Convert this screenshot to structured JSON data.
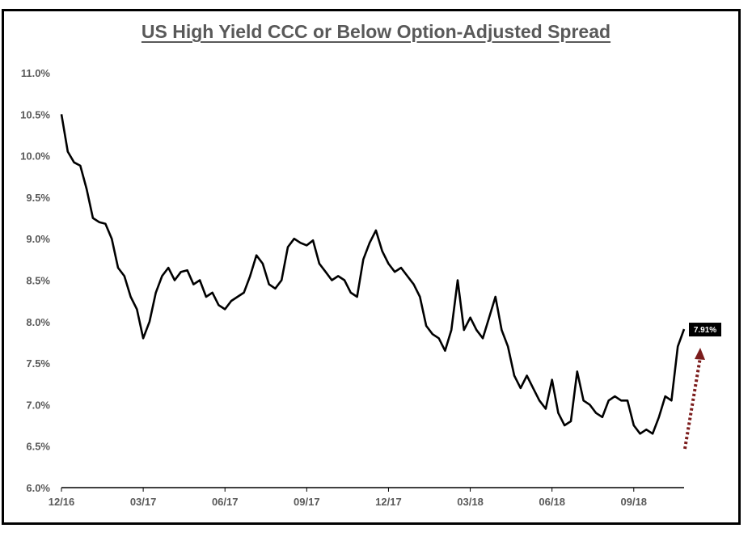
{
  "chart_data": {
    "type": "line",
    "title": "US High Yield CCC or Below Option-Adjusted Spread",
    "xlabel": "",
    "ylabel": "",
    "ylim": [
      6.0,
      11.0
    ],
    "y_ticks": [
      "6.0%",
      "6.5%",
      "7.0%",
      "7.5%",
      "8.0%",
      "8.5%",
      "9.0%",
      "9.5%",
      "10.0%",
      "10.5%",
      "11.0%"
    ],
    "x_ticks": [
      "12/16",
      "03/17",
      "06/17",
      "09/17",
      "12/17",
      "03/18",
      "06/18",
      "09/18"
    ],
    "grid": false,
    "legend": "none",
    "line_color": "#000000",
    "x_unit": "weeks from 12/16",
    "x": [
      0,
      1,
      2,
      3,
      4,
      5,
      6,
      7,
      8,
      9,
      10,
      11,
      12,
      13,
      14,
      15,
      16,
      17,
      18,
      19,
      20,
      21,
      22,
      23,
      24,
      25,
      26,
      27,
      28,
      29,
      30,
      31,
      32,
      33,
      34,
      35,
      36,
      37,
      38,
      39,
      40,
      41,
      42,
      43,
      44,
      45,
      46,
      47,
      48,
      49,
      50,
      51,
      52,
      53,
      54,
      55,
      56,
      57,
      58,
      59,
      60,
      61,
      62,
      63,
      64,
      65,
      66,
      67,
      68,
      69,
      70,
      71,
      72,
      73,
      74,
      75,
      76,
      77,
      78,
      79,
      80,
      81,
      82,
      83,
      84,
      85,
      86,
      87,
      88,
      89,
      90,
      91,
      92,
      93,
      94,
      95,
      96,
      97,
      98,
      99
    ],
    "values": [
      10.5,
      10.05,
      9.92,
      9.88,
      9.6,
      9.25,
      9.2,
      9.18,
      9.0,
      8.65,
      8.55,
      8.3,
      8.15,
      7.8,
      8.0,
      8.35,
      8.55,
      8.65,
      8.5,
      8.6,
      8.62,
      8.45,
      8.5,
      8.3,
      8.35,
      8.2,
      8.15,
      8.25,
      8.3,
      8.35,
      8.55,
      8.8,
      8.7,
      8.45,
      8.4,
      8.5,
      8.9,
      9.0,
      8.95,
      8.92,
      8.98,
      8.7,
      8.6,
      8.5,
      8.55,
      8.5,
      8.35,
      8.3,
      8.75,
      8.95,
      9.1,
      8.85,
      8.7,
      8.6,
      8.65,
      8.55,
      8.45,
      8.3,
      7.95,
      7.85,
      7.8,
      7.65,
      7.9,
      8.5,
      7.9,
      8.05,
      7.9,
      7.8,
      8.05,
      8.3,
      7.9,
      7.7,
      7.35,
      7.2,
      7.35,
      7.2,
      7.05,
      6.95,
      7.3,
      6.9,
      6.75,
      6.8,
      7.4,
      7.05,
      7.0,
      6.9,
      6.85,
      7.05,
      7.1,
      7.05,
      7.05,
      6.75,
      6.65,
      6.7,
      6.65,
      6.85,
      7.1,
      7.05,
      7.7,
      7.91
    ],
    "callout_label": "7.91%",
    "callout_value": 7.91,
    "arrow_color": "#7B1C1C"
  }
}
